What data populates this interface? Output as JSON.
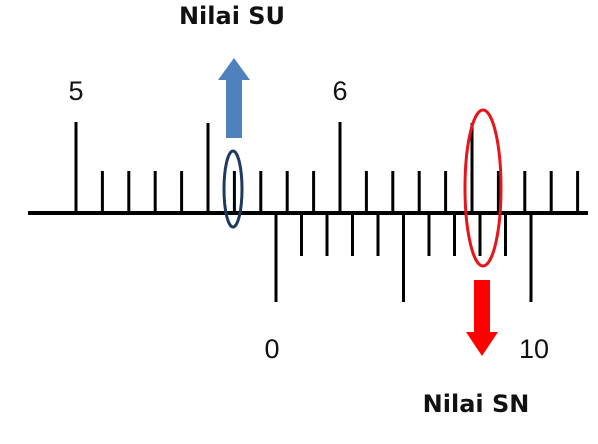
{
  "labels": {
    "su_title": "Nilai SU",
    "sn_title": "Nilai SN"
  },
  "main_scale": {
    "numbers": [
      "5",
      "6"
    ],
    "minor_divisions": 10
  },
  "vernier_scale": {
    "numbers": [
      "0",
      "10"
    ],
    "minor_divisions": 10
  },
  "colors": {
    "line": "#000000",
    "su_arrow": "#4f81bd",
    "su_marker": "#1f3a60",
    "sn_arrow": "#ff0000",
    "sn_marker": "#e8141b"
  },
  "icons": {
    "su_arrow": "arrow-up-icon",
    "sn_arrow": "arrow-down-icon"
  }
}
